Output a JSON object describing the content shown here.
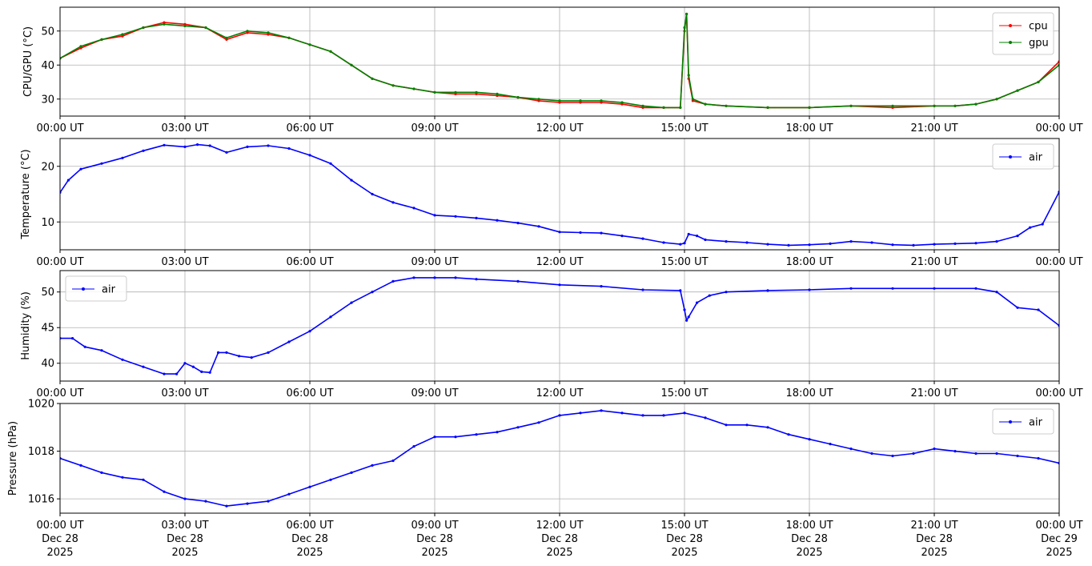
{
  "x_axis": {
    "tick_labels": [
      "00:00 UT",
      "03:00 UT",
      "06:00 UT",
      "09:00 UT",
      "12:00 UT",
      "15:00 UT",
      "18:00 UT",
      "21:00 UT",
      "00:00 UT"
    ],
    "date_labels": [
      "Dec 28",
      "Dec 28",
      "Dec 28",
      "Dec 28",
      "Dec 28",
      "Dec 28",
      "Dec 28",
      "Dec 28",
      "Dec 29"
    ],
    "year_labels": [
      "2025",
      "2025",
      "2025",
      "2025",
      "2025",
      "2025",
      "2025",
      "2025",
      "2025"
    ]
  },
  "colors": {
    "cpu": "#ff0000",
    "gpu": "#008000",
    "air": "#0000ff",
    "grid": "#b0b0b0"
  },
  "chart_data": [
    {
      "type": "line",
      "ylabel": "CPU/GPU (°C)",
      "xlim": [
        0,
        24
      ],
      "ylim": [
        25,
        57
      ],
      "yticks": [
        30,
        40,
        50
      ],
      "grid": true,
      "legend": "top-right",
      "x": [
        0,
        0.5,
        1,
        1.5,
        2,
        2.5,
        3,
        3.5,
        4,
        4.5,
        5,
        5.5,
        6,
        6.5,
        7,
        7.5,
        8,
        8.5,
        9,
        9.5,
        10,
        10.5,
        11,
        11.5,
        12,
        12.5,
        13,
        13.5,
        14,
        14.5,
        14.9,
        15,
        15.05,
        15.1,
        15.2,
        15.5,
        16,
        17,
        18,
        19,
        20,
        21,
        21.5,
        22,
        22.5,
        23,
        23.5,
        24
      ],
      "series": [
        {
          "name": "cpu",
          "values": [
            42,
            45,
            47.5,
            48.5,
            51,
            52.5,
            52,
            51,
            47.5,
            49.5,
            49,
            48,
            46,
            44,
            40,
            36,
            34,
            33,
            32,
            31.5,
            31.5,
            31,
            30.5,
            29.5,
            29,
            29,
            29,
            28.5,
            27.5,
            27.5,
            27.5,
            50,
            55,
            36,
            29.5,
            28.5,
            28,
            27.5,
            27.5,
            28,
            27.5,
            28,
            28,
            28.5,
            30,
            32.5,
            35,
            41
          ]
        },
        {
          "name": "gpu",
          "values": [
            42,
            45.5,
            47.5,
            49,
            51,
            52,
            51.5,
            51,
            48,
            50,
            49.5,
            48,
            46,
            44,
            40,
            36,
            34,
            33,
            32,
            32,
            32,
            31.5,
            30.5,
            30,
            29.5,
            29.5,
            29.5,
            29,
            28,
            27.5,
            27.5,
            51,
            55,
            37,
            30,
            28.5,
            28,
            27.5,
            27.5,
            28,
            28,
            28,
            28,
            28.5,
            30,
            32.5,
            35,
            40
          ]
        }
      ]
    },
    {
      "type": "line",
      "ylabel": "Temperature (°C)",
      "xlim": [
        0,
        24
      ],
      "ylim": [
        5,
        25
      ],
      "yticks": [
        10,
        20
      ],
      "grid": true,
      "legend": "top-right",
      "x": [
        0,
        0.2,
        0.5,
        1,
        1.5,
        2,
        2.5,
        3,
        3.3,
        3.6,
        4,
        4.5,
        5,
        5.5,
        6,
        6.5,
        7,
        7.5,
        8,
        8.5,
        9,
        9.5,
        10,
        10.5,
        11,
        11.5,
        12,
        12.5,
        13,
        13.5,
        14,
        14.5,
        14.9,
        15,
        15.1,
        15.3,
        15.5,
        16,
        16.5,
        17,
        17.5,
        18,
        18.5,
        19,
        19.5,
        20,
        20.5,
        21,
        21.5,
        22,
        22.5,
        23,
        23.3,
        23.6,
        24
      ],
      "series": [
        {
          "name": "air",
          "values": [
            15.3,
            17.5,
            19.5,
            20.5,
            21.5,
            22.8,
            23.8,
            23.5,
            23.9,
            23.7,
            22.5,
            23.5,
            23.7,
            23.2,
            22,
            20.5,
            17.5,
            15,
            13.5,
            12.5,
            11.2,
            11,
            10.7,
            10.3,
            9.8,
            9.2,
            8.2,
            8.1,
            8,
            7.5,
            7,
            6.3,
            6,
            6.2,
            7.8,
            7.5,
            6.8,
            6.5,
            6.3,
            6,
            5.8,
            5.9,
            6.1,
            6.5,
            6.3,
            5.9,
            5.8,
            6,
            6.1,
            6.2,
            6.5,
            7.5,
            9,
            9.6,
            15.4
          ]
        }
      ]
    },
    {
      "type": "line",
      "ylabel": "Humidity (%)",
      "xlim": [
        0,
        24
      ],
      "ylim": [
        37.5,
        53
      ],
      "yticks": [
        40,
        45,
        50
      ],
      "grid": true,
      "legend": "top-left",
      "x": [
        0,
        0.3,
        0.6,
        1,
        1.5,
        2,
        2.5,
        2.8,
        3,
        3.2,
        3.4,
        3.6,
        3.8,
        4,
        4.3,
        4.6,
        5,
        5.5,
        6,
        6.5,
        7,
        7.5,
        8,
        8.5,
        9,
        9.5,
        10,
        11,
        12,
        13,
        14,
        14.9,
        15,
        15.05,
        15.1,
        15.3,
        15.6,
        16,
        17,
        18,
        19,
        20,
        21,
        22,
        22.5,
        23,
        23.5,
        24
      ],
      "series": [
        {
          "name": "air",
          "values": [
            43.5,
            43.5,
            42.3,
            41.8,
            40.5,
            39.5,
            38.5,
            38.5,
            40,
            39.5,
            38.8,
            38.7,
            41.5,
            41.5,
            41,
            40.8,
            41.5,
            43,
            44.5,
            46.5,
            48.5,
            50,
            51.5,
            52,
            52,
            52,
            51.8,
            51.5,
            51,
            50.8,
            50.3,
            50.2,
            47.5,
            46,
            46.5,
            48.5,
            49.5,
            50,
            50.2,
            50.3,
            50.5,
            50.5,
            50.5,
            50.5,
            50,
            47.8,
            47.5,
            45.3
          ]
        }
      ]
    },
    {
      "type": "line",
      "ylabel": "Pressure (hPa)",
      "xlim": [
        0,
        24
      ],
      "ylim": [
        1015.4,
        1020
      ],
      "yticks": [
        1016,
        1018,
        1020
      ],
      "grid": true,
      "legend": "top-right",
      "x": [
        0,
        0.5,
        1,
        1.5,
        2,
        2.5,
        3,
        3.5,
        4,
        4.5,
        5,
        5.5,
        6,
        6.5,
        7,
        7.5,
        8,
        8.5,
        9,
        9.5,
        10,
        10.5,
        11,
        11.5,
        12,
        12.5,
        13,
        13.5,
        14,
        14.5,
        15,
        15.5,
        16,
        16.5,
        17,
        17.5,
        18,
        18.5,
        19,
        19.5,
        20,
        20.5,
        21,
        21.5,
        22,
        22.5,
        23,
        23.5,
        24
      ],
      "series": [
        {
          "name": "air",
          "values": [
            1017.7,
            1017.4,
            1017.1,
            1016.9,
            1016.8,
            1016.3,
            1016,
            1015.9,
            1015.7,
            1015.8,
            1015.9,
            1016.2,
            1016.5,
            1016.8,
            1017.1,
            1017.4,
            1017.6,
            1018.2,
            1018.6,
            1018.6,
            1018.7,
            1018.8,
            1019,
            1019.2,
            1019.5,
            1019.6,
            1019.7,
            1019.6,
            1019.5,
            1019.5,
            1019.6,
            1019.4,
            1019.1,
            1019.1,
            1019,
            1018.7,
            1018.5,
            1018.3,
            1018.1,
            1017.9,
            1017.8,
            1017.9,
            1018.1,
            1018,
            1017.9,
            1017.9,
            1017.8,
            1017.7,
            1017.5
          ]
        }
      ]
    }
  ]
}
